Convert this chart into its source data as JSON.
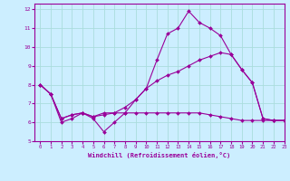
{
  "xlabel": "Windchill (Refroidissement éolien,°C)",
  "xlim": [
    -0.5,
    23
  ],
  "ylim": [
    5,
    12.3
  ],
  "yticks": [
    5,
    6,
    7,
    8,
    9,
    10,
    11,
    12
  ],
  "xticks": [
    0,
    1,
    2,
    3,
    4,
    5,
    6,
    7,
    8,
    9,
    10,
    11,
    12,
    13,
    14,
    15,
    16,
    17,
    18,
    19,
    20,
    21,
    22,
    23
  ],
  "bg_color": "#cceeff",
  "line_color": "#990099",
  "grid_color": "#aadddd",
  "line1_x": [
    0,
    1,
    2,
    3,
    4,
    5,
    6,
    7,
    8,
    9,
    10,
    11,
    12,
    13,
    14,
    15,
    16,
    17,
    18,
    19,
    20,
    21,
    22,
    23
  ],
  "line1_y": [
    8.0,
    7.5,
    6.0,
    6.2,
    6.5,
    6.2,
    5.5,
    6.0,
    6.5,
    7.2,
    7.8,
    9.3,
    10.7,
    11.0,
    11.9,
    11.3,
    11.0,
    10.6,
    9.6,
    8.8,
    8.1,
    6.2,
    6.1,
    6.1
  ],
  "line2_x": [
    0,
    1,
    2,
    3,
    4,
    5,
    6,
    7,
    8,
    9,
    10,
    11,
    12,
    13,
    14,
    15,
    16,
    17,
    18,
    19,
    20,
    21,
    22,
    23
  ],
  "line2_y": [
    8.0,
    7.5,
    6.2,
    6.4,
    6.5,
    6.3,
    6.5,
    6.5,
    6.8,
    7.2,
    7.8,
    8.2,
    8.5,
    8.7,
    9.0,
    9.3,
    9.5,
    9.7,
    9.6,
    8.8,
    8.1,
    6.2,
    6.1,
    6.1
  ],
  "line3_x": [
    0,
    1,
    2,
    3,
    4,
    5,
    6,
    7,
    8,
    9,
    10,
    11,
    12,
    13,
    14,
    15,
    16,
    17,
    18,
    19,
    20,
    21,
    22,
    23
  ],
  "line3_y": [
    8.0,
    7.5,
    6.2,
    6.4,
    6.5,
    6.3,
    6.4,
    6.5,
    6.5,
    6.5,
    6.5,
    6.5,
    6.5,
    6.5,
    6.5,
    6.5,
    6.4,
    6.3,
    6.2,
    6.1,
    6.1,
    6.1,
    6.1,
    6.1
  ],
  "marker": "D",
  "marker_size": 2.0,
  "linewidth": 0.8
}
